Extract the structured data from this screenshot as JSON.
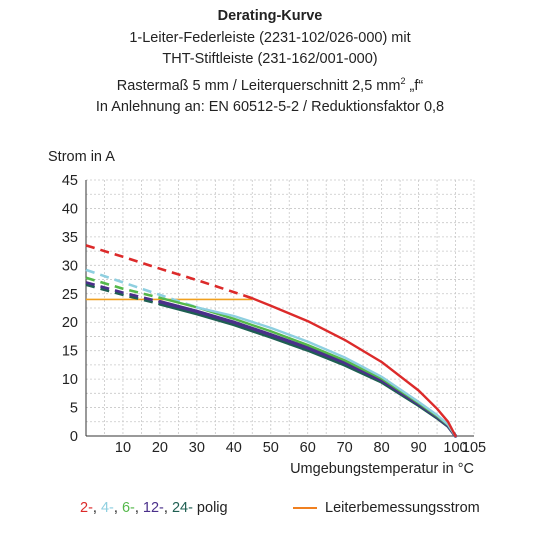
{
  "chart_data": {
    "type": "line",
    "title": "Derating-Kurve",
    "subtitle_lines": [
      "1-Leiter-Federleiste (2231-102/026-000) mit",
      "THT-Stiftleiste (231-162/001-000)",
      "Rastermaß 5 mm / Leiterquerschnitt 2,5 mm",
      "In Anlehnung an: EN 60512-5-2 / Reduktionsfaktor 0,8"
    ],
    "subtitle_sup": "2",
    "subtitle_suffix": " „f“",
    "xlabel": "Umgebungstemperatur in °C",
    "ylabel": "Strom in A",
    "xlim": [
      0,
      105
    ],
    "ylim": [
      0,
      45
    ],
    "xticks": [
      10,
      20,
      30,
      40,
      50,
      60,
      70,
      80,
      90,
      100,
      105
    ],
    "yticks": [
      0,
      5,
      10,
      15,
      20,
      25,
      30,
      35,
      40,
      45
    ],
    "grid": true,
    "series": [
      {
        "name": "2",
        "color": "#dc2a2a",
        "dashed_x": [
          0,
          10,
          20,
          30,
          40,
          45
        ],
        "dashed_y": [
          33.5,
          31.5,
          29.4,
          27.4,
          25.3,
          24.2
        ],
        "x": [
          45,
          50,
          60,
          70,
          80,
          90,
          95,
          98,
          100
        ],
        "y": [
          24.2,
          22.9,
          20.2,
          16.9,
          13.0,
          8.0,
          4.8,
          2.5,
          0
        ]
      },
      {
        "name": "4",
        "color": "#8ecfe0",
        "dashed_x": [
          0,
          10,
          20,
          30
        ],
        "dashed_y": [
          29.2,
          27.0,
          24.8,
          22.6
        ],
        "x": [
          30,
          40,
          50,
          60,
          70,
          80,
          90,
          95,
          98,
          100
        ],
        "y": [
          22.6,
          21.1,
          19.0,
          16.6,
          13.8,
          10.4,
          6.0,
          3.7,
          2.0,
          0
        ]
      },
      {
        "name": "6",
        "color": "#54b84a",
        "dashed_x": [
          0,
          10,
          20
        ],
        "dashed_y": [
          27.8,
          25.9,
          24.3
        ],
        "x": [
          20,
          30,
          40,
          50,
          60,
          70,
          80,
          90,
          95,
          98,
          100
        ],
        "y": [
          24.3,
          22.6,
          20.6,
          18.4,
          16.0,
          13.3,
          10.1,
          5.8,
          3.5,
          1.9,
          0
        ]
      },
      {
        "name": "12",
        "color": "#4a2f8a",
        "dashed_x": [
          0,
          10,
          20
        ],
        "dashed_y": [
          27.0,
          25.2,
          23.6
        ],
        "x": [
          20,
          30,
          40,
          50,
          60,
          70,
          80,
          90,
          95,
          98,
          100
        ],
        "y": [
          23.6,
          21.9,
          20.0,
          17.8,
          15.5,
          12.9,
          9.8,
          5.6,
          3.4,
          1.8,
          0
        ]
      },
      {
        "name": "24",
        "color": "#1f5f52",
        "dashed_x": [
          0,
          10,
          20
        ],
        "dashed_y": [
          26.6,
          24.8,
          23.2
        ],
        "x": [
          20,
          30,
          40,
          50,
          60,
          70,
          80,
          90,
          95,
          98,
          100
        ],
        "y": [
          23.2,
          21.5,
          19.6,
          17.4,
          15.1,
          12.5,
          9.5,
          5.4,
          3.2,
          1.7,
          0
        ]
      }
    ],
    "reference_line": {
      "name": "Leiterbemessungsstrom",
      "color": "#f0a020",
      "x": [
        0,
        45
      ],
      "y": [
        24,
        24
      ]
    },
    "legend_left": [
      {
        "text": "2-",
        "color": "#dc2a2a"
      },
      {
        "text": ", ",
        "color": "#222222"
      },
      {
        "text": "4-",
        "color": "#8ecfe0"
      },
      {
        "text": ", ",
        "color": "#222222"
      },
      {
        "text": "6-",
        "color": "#54b84a"
      },
      {
        "text": ", ",
        "color": "#222222"
      },
      {
        "text": "12-",
        "color": "#4a2f8a"
      },
      {
        "text": ", ",
        "color": "#222222"
      },
      {
        "text": "24-",
        "color": "#1f5f52"
      },
      {
        "text": " polig",
        "color": "#222222"
      }
    ],
    "legend_right": {
      "text": "Leiterbemessungsstrom",
      "color": "#f08020"
    }
  }
}
